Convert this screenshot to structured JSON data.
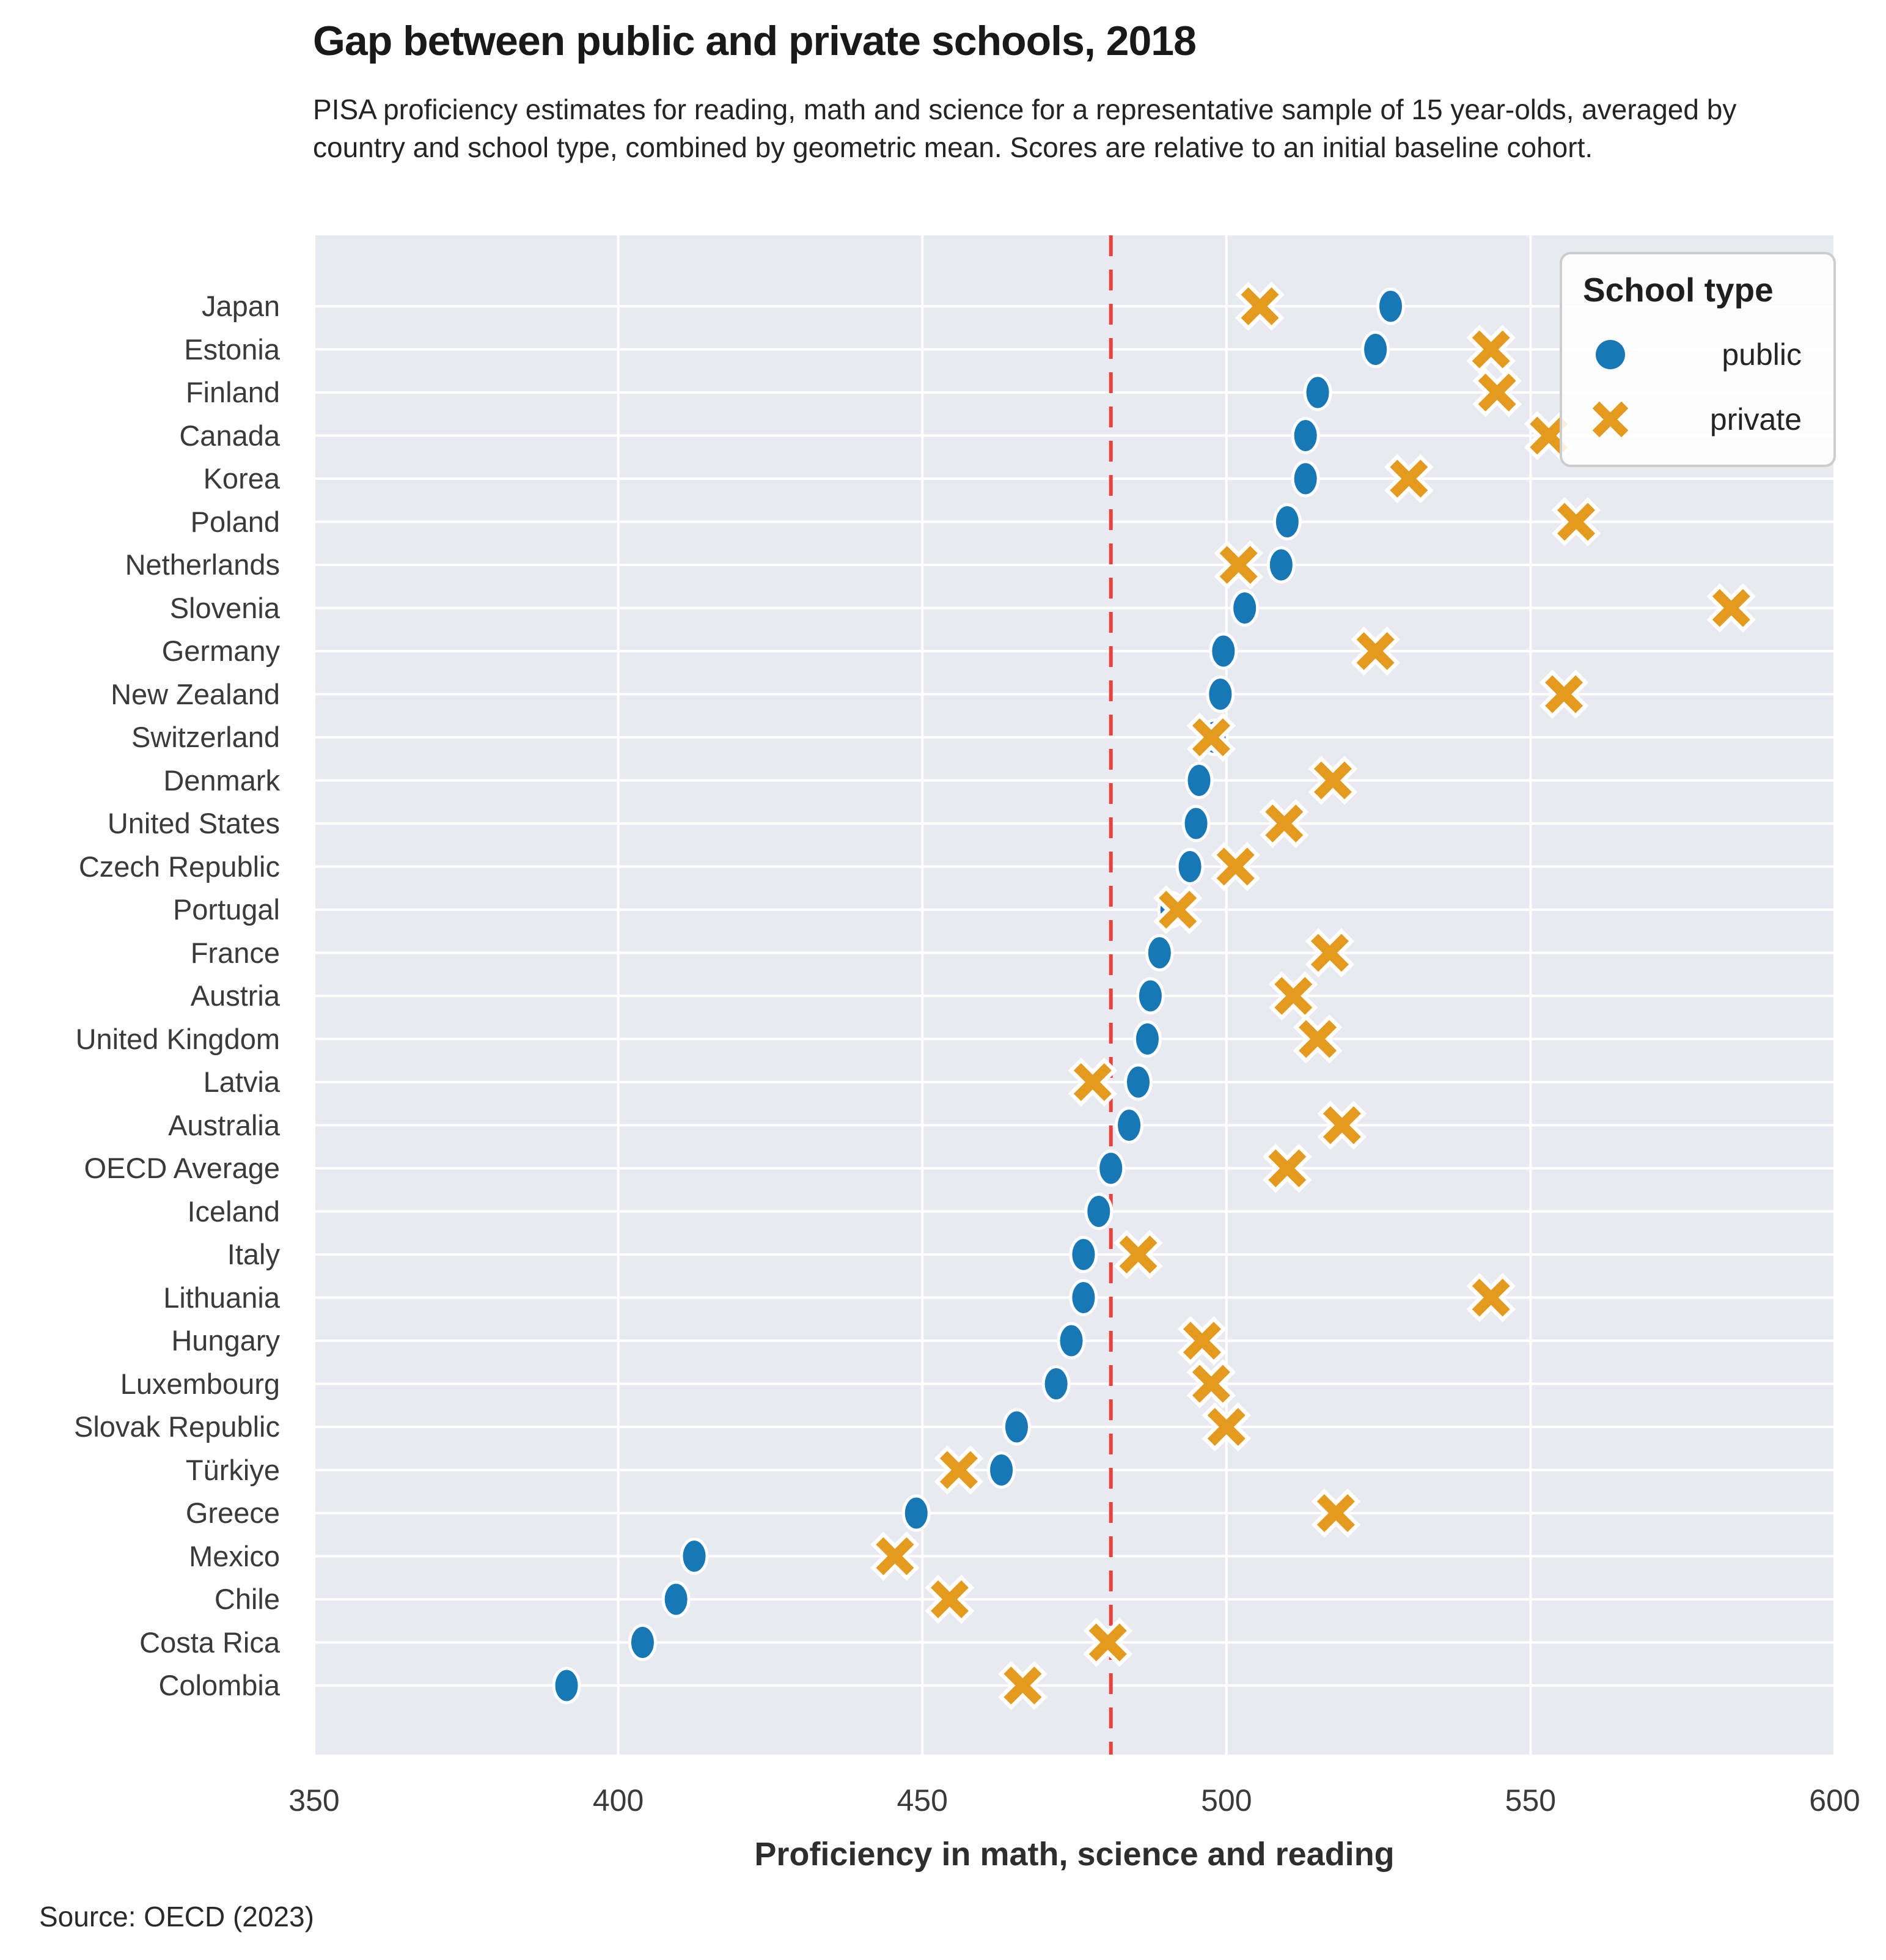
{
  "header": {
    "title": "Gap between public and private schools, 2018",
    "subtitle": "PISA proficiency estimates for reading, math and science for a representative sample of 15 year-olds, averaged by country and school type, combined by geometric mean. Scores are relative to an initial baseline cohort."
  },
  "legend": {
    "title": "School type",
    "items": [
      {
        "label": "public",
        "marker": "circle"
      },
      {
        "label": "private",
        "marker": "x"
      }
    ]
  },
  "source": "Source: OECD (2023)",
  "colors": {
    "public": "#1878b5",
    "private": "#e39a1f",
    "reference_line": "#e8423c",
    "plot_background": "#e9e9f1",
    "gridline": "#ffffff"
  },
  "chart_data": {
    "type": "scatter",
    "variant": "horizontal dot plot",
    "title": "Gap between public and private schools, 2018",
    "xlabel": "Proficiency in math, science and reading",
    "ylabel": "",
    "xlim": [
      350,
      600
    ],
    "xticks": [
      350,
      400,
      450,
      500,
      550,
      600
    ],
    "grid": true,
    "legend_position": "upper right",
    "reference_line_x": 481,
    "categories": [
      "Japan",
      "Estonia",
      "Finland",
      "Canada",
      "Korea",
      "Poland",
      "Netherlands",
      "Slovenia",
      "Germany",
      "New Zealand",
      "Switzerland",
      "Denmark",
      "United States",
      "Czech Republic",
      "Portugal",
      "France",
      "Austria",
      "United Kingdom",
      "Latvia",
      "Australia",
      "OECD Average",
      "Iceland",
      "Italy",
      "Lithuania",
      "Hungary",
      "Luxembourg",
      "Slovak Republic",
      "Türkiye",
      "Greece",
      "Mexico",
      "Chile",
      "Costa Rica",
      "Colombia"
    ],
    "series": [
      {
        "name": "public",
        "marker": "circle",
        "color": "#1878b5",
        "values": [
          527,
          524.5,
          515,
          513,
          513,
          510,
          509,
          503,
          499.5,
          499,
          498,
          495.5,
          495,
          494,
          491,
          489,
          487.5,
          487,
          485.5,
          484,
          481,
          479,
          476.5,
          476.5,
          474.5,
          472,
          465.5,
          463,
          449,
          412.5,
          409.5,
          404,
          391.5
        ]
      },
      {
        "name": "private",
        "marker": "x",
        "color": "#e39a1f",
        "values": [
          505.5,
          543.5,
          544.5,
          553,
          530,
          557.5,
          502,
          583,
          524.5,
          555.5,
          497.5,
          517.5,
          509.5,
          501.5,
          492,
          517,
          511,
          515,
          478,
          519,
          510,
          null,
          485.5,
          543.5,
          496,
          497.5,
          500,
          456,
          518,
          445.5,
          454.5,
          480.5,
          466.5
        ]
      }
    ]
  }
}
